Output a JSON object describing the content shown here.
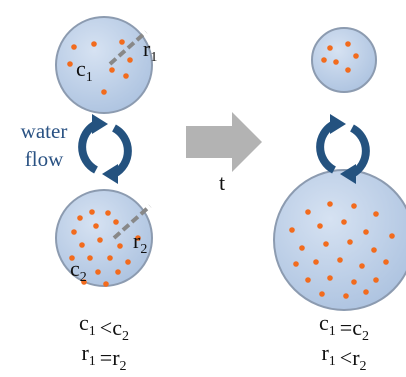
{
  "left": {
    "top_labels": {
      "c": {
        "main": "c",
        "sub": "1"
      },
      "r": {
        "main": "r",
        "sub": "1"
      }
    },
    "bottom_labels": {
      "c": {
        "main": "c",
        "sub": "2"
      },
      "r": {
        "main": "r",
        "sub": "2"
      }
    },
    "flow_label": [
      "water",
      "flow"
    ],
    "conditions": [
      {
        "a": {
          "main": "c",
          "sub": "1"
        },
        "op": "<",
        "b": {
          "main": "c",
          "sub": "2"
        }
      },
      {
        "a": {
          "main": "r",
          "sub": "1"
        },
        "op": "=",
        "b": {
          "main": "r",
          "sub": "2"
        }
      }
    ]
  },
  "time_label": "t",
  "right": {
    "conditions": [
      {
        "a": {
          "main": "c",
          "sub": "1"
        },
        "op": "=",
        "b": {
          "main": "c",
          "sub": "2"
        }
      },
      {
        "a": {
          "main": "r",
          "sub": "1"
        },
        "op": "<",
        "b": {
          "main": "r",
          "sub": "2"
        }
      }
    ]
  }
}
